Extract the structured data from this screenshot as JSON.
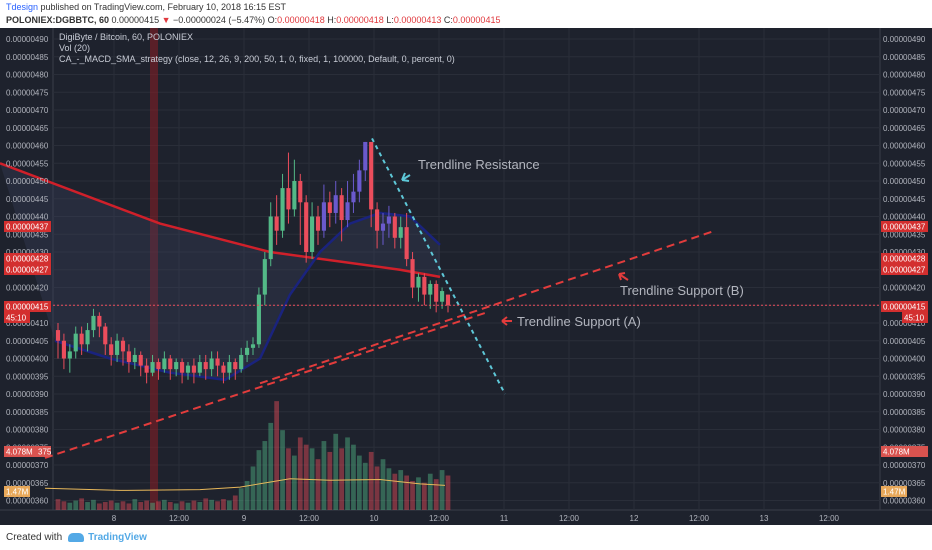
{
  "header": {
    "author": "Tdesign",
    "published_text": "published on TradingView.com, February 10, 2018 16:15 EST",
    "symbol": "POLONIEX:DGBBTC, 60",
    "price": "0.00000415",
    "change": "−0.00000024 (−5.47%)",
    "o_label": "O:",
    "o_value": "0.00000418",
    "h_label": "H:",
    "h_value": "0.00000418",
    "l_label": "L:",
    "l_value": "0.00000413",
    "c_label": "C:",
    "c_value": "0.00000415"
  },
  "legend": {
    "title": "DigiByte / Bitcoin, 60, POLONIEX",
    "vol": "Vol (20)",
    "strategy": "CA_-_MACD_SMA_strategy (close, 12, 26, 9, 200, 50, 1, 0, fixed, 1, 100000, Default, 0, percent, 0)"
  },
  "annotations": {
    "resistance": "Trendline Resistance",
    "support_a": "Trendline Support (A)",
    "support_b": "Trendline Support (B)"
  },
  "badges": {
    "left_price_437": "0.00000437",
    "left_price_428": "0.00000428",
    "left_price_427": "0.00000427",
    "left_price_415": "0.00000415",
    "left_countdown": "45:10",
    "left_vol_ma": "4.078M",
    "left_vol": "1.47M",
    "right_price_437": "0.00000437",
    "right_price_428": "0.00000428",
    "right_price_427": "0.00000427",
    "right_price_415": "0.00000415",
    "right_countdown": "45:10",
    "right_vol_ma": "4.078M",
    "right_vol": "1.47M",
    "vol_ma_suffix": "375"
  },
  "footer": {
    "created_with": "Created with",
    "brand": "TradingView"
  },
  "colors": {
    "background": "#1e222d",
    "grid": "#2a2e39",
    "bull": "#53b987",
    "bear": "#eb4d5c",
    "macd_bull": "#6a5acd",
    "sma200": "#d0202a",
    "sma50": "#1a237e",
    "resistance_line": "#5ec8d8",
    "support_line": "#e23c3c",
    "volume_ma": "#e8b85a"
  },
  "chart_data": {
    "type": "candlestick",
    "y_ticks": [
      "0.00000490",
      "0.00000485",
      "0.00000480",
      "0.00000475",
      "0.00000470",
      "0.00000465",
      "0.00000460",
      "0.00000455",
      "0.00000450",
      "0.00000445",
      "0.00000440",
      "0.00000435",
      "0.00000430",
      "0.00000425",
      "0.00000420",
      "0.00000415",
      "0.00000410",
      "0.00000405",
      "0.00000400",
      "0.00000395",
      "0.00000390",
      "0.00000385",
      "0.00000380",
      "0.00000375",
      "0.00000370",
      "0.00000365",
      "0.00000360"
    ],
    "ylim": [
      358,
      492
    ],
    "x_ticks": [
      "8",
      "12:00",
      "9",
      "12:00",
      "10",
      "12:00",
      "11",
      "12:00",
      "12",
      "12:00",
      "13",
      "12:00"
    ],
    "candles": [
      [
        408,
        405,
        400,
        410
      ],
      [
        405,
        400,
        397,
        407
      ],
      [
        400,
        402,
        396,
        404
      ],
      [
        402,
        407,
        400,
        409
      ],
      [
        407,
        404,
        401,
        409
      ],
      [
        404,
        408,
        402,
        410
      ],
      [
        408,
        412,
        406,
        414
      ],
      [
        412,
        409,
        406,
        413
      ],
      [
        409,
        404,
        401,
        410
      ],
      [
        404,
        401,
        398,
        406
      ],
      [
        401,
        405,
        399,
        407
      ],
      [
        405,
        402,
        398,
        406
      ],
      [
        402,
        399,
        396,
        404
      ],
      [
        399,
        401,
        397,
        403
      ],
      [
        401,
        398,
        395,
        402
      ],
      [
        398,
        396,
        393,
        400
      ],
      [
        396,
        399,
        395,
        401
      ],
      [
        399,
        397,
        394,
        400
      ],
      [
        397,
        400,
        396,
        402
      ],
      [
        400,
        397,
        394,
        401
      ],
      [
        397,
        399,
        395,
        400
      ],
      [
        399,
        396,
        393,
        400
      ],
      [
        396,
        398,
        394,
        399
      ],
      [
        398,
        396,
        393,
        400
      ],
      [
        396,
        399,
        395,
        401
      ],
      [
        399,
        397,
        394,
        401
      ],
      [
        397,
        400,
        395,
        402
      ],
      [
        400,
        398,
        395,
        402
      ],
      [
        398,
        396,
        393,
        399
      ],
      [
        396,
        399,
        394,
        401
      ],
      [
        399,
        397,
        394,
        400
      ],
      [
        397,
        401,
        396,
        403
      ],
      [
        401,
        403,
        399,
        405
      ],
      [
        403,
        404,
        401,
        406
      ],
      [
        404,
        418,
        403,
        420
      ],
      [
        418,
        428,
        415,
        430
      ],
      [
        428,
        440,
        426,
        444
      ],
      [
        440,
        436,
        432,
        446
      ],
      [
        436,
        448,
        434,
        452
      ],
      [
        448,
        442,
        438,
        458
      ],
      [
        442,
        450,
        440,
        456
      ],
      [
        450,
        444,
        432,
        452
      ],
      [
        444,
        430,
        427,
        446
      ],
      [
        430,
        440,
        428,
        444
      ],
      [
        440,
        436,
        432,
        443
      ],
      [
        436,
        444,
        434,
        449
      ],
      [
        444,
        441,
        437,
        447
      ],
      [
        441,
        446,
        438,
        450
      ],
      [
        446,
        439,
        433,
        448
      ],
      [
        439,
        444,
        437,
        450
      ],
      [
        444,
        447,
        441,
        452
      ],
      [
        447,
        453,
        444,
        456
      ],
      [
        453,
        461,
        450,
        461
      ],
      [
        461,
        442,
        437,
        461
      ],
      [
        442,
        436,
        431,
        444
      ],
      [
        436,
        438,
        432,
        441
      ],
      [
        438,
        440,
        434,
        443
      ],
      [
        440,
        434,
        431,
        441
      ],
      [
        434,
        437,
        431,
        440
      ],
      [
        437,
        428,
        426,
        441
      ],
      [
        428,
        420,
        417,
        430
      ],
      [
        420,
        423,
        416,
        424
      ],
      [
        423,
        418,
        415,
        424
      ],
      [
        418,
        421,
        414,
        422
      ],
      [
        421,
        416,
        413,
        422
      ],
      [
        416,
        419,
        414,
        420
      ],
      [
        418,
        415,
        413,
        418
      ]
    ],
    "volume": [
      30,
      24,
      20,
      26,
      32,
      22,
      28,
      18,
      22,
      26,
      20,
      24,
      18,
      30,
      22,
      26,
      20,
      24,
      28,
      22,
      18,
      24,
      20,
      26,
      22,
      32,
      28,
      24,
      30,
      26,
      40,
      60,
      80,
      120,
      165,
      190,
      240,
      300,
      220,
      170,
      150,
      200,
      180,
      170,
      140,
      190,
      160,
      210,
      170,
      200,
      180,
      150,
      130,
      160,
      120,
      140,
      115,
      100,
      110,
      95,
      80,
      90,
      75,
      100,
      85,
      110,
      95
    ],
    "vol_ylim": [
      0,
      350
    ],
    "sma200": [
      [
        0,
        455
      ],
      [
        160,
        438
      ],
      [
        270,
        430
      ],
      [
        400,
        425
      ],
      [
        440,
        423
      ]
    ],
    "sma50": [
      [
        55,
        405
      ],
      [
        110,
        400
      ],
      [
        170,
        396
      ],
      [
        225,
        394
      ],
      [
        260,
        400
      ],
      [
        290,
        418
      ],
      [
        320,
        430
      ],
      [
        350,
        438
      ],
      [
        380,
        441
      ],
      [
        410,
        440
      ],
      [
        440,
        432
      ]
    ],
    "resistance_line": [
      [
        372,
        462
      ],
      [
        505,
        390
      ]
    ],
    "support_a_line": [
      [
        45,
        372
      ],
      [
        487,
        413
      ]
    ],
    "support_b_line": [
      [
        260,
        393
      ],
      [
        715,
        436
      ]
    ],
    "vol_ma": [
      [
        45,
        60
      ],
      [
        120,
        54
      ],
      [
        200,
        56
      ],
      [
        240,
        63
      ],
      [
        290,
        86
      ],
      [
        330,
        82
      ],
      [
        380,
        84
      ],
      [
        420,
        72
      ],
      [
        445,
        68
      ]
    ]
  }
}
